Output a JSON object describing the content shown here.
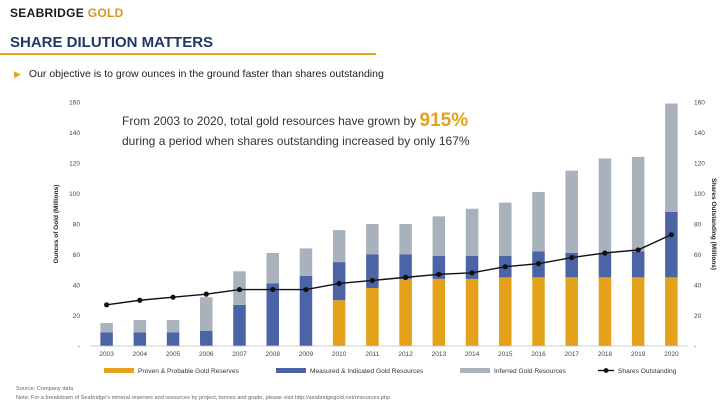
{
  "logo": {
    "part1": "SEABRIDGE",
    "part2": "GOLD"
  },
  "title": "SHARE DILUTION MATTERS",
  "bullet": "Our objective is to grow ounces in the ground faster than shares outstanding",
  "annotation": {
    "line1_prefix": "From 2003 to 2020, total gold resources have grown by",
    "line1_highlight": "915%",
    "line2": "during a period when shares outstanding increased by only 167%"
  },
  "footer": {
    "source": "Source: Company data",
    "note": "Note: For a breakdown of Seabridge's mineral reserves and resources by project, tonnes and grade, please visit http://seabridgegold.net/resources.php"
  },
  "colors": {
    "pp": "#e3a21a",
    "mi": "#4a64a6",
    "inf": "#a9b1bd",
    "line": "#111111",
    "accent": "#e3a21a",
    "title": "#1f3864"
  },
  "chart_data": {
    "type": "bar",
    "stacked": true,
    "categories": [
      "2003",
      "2004",
      "2005",
      "2006",
      "2007",
      "2008",
      "2009",
      "2010",
      "2011",
      "2012",
      "2013",
      "2014",
      "2015",
      "2016",
      "2017",
      "2018",
      "2019",
      "2020"
    ],
    "series": [
      {
        "name": "Proven & Probable Gold Reserves",
        "values": [
          0,
          0,
          0,
          0,
          0,
          0,
          0,
          30,
          38,
          44,
          44,
          44,
          45,
          45,
          45,
          45,
          45,
          45
        ]
      },
      {
        "name": "Measured & Indicated Gold Resources",
        "values": [
          9,
          9,
          9,
          10,
          27,
          41,
          46,
          25,
          22,
          16,
          15,
          15,
          14,
          17,
          16,
          16,
          17,
          43
        ]
      },
      {
        "name": "Inferred Gold Resources",
        "values": [
          6,
          8,
          8,
          22,
          22,
          20,
          18,
          21,
          20,
          20,
          26,
          31,
          35,
          39,
          54,
          62,
          62,
          71
        ]
      }
    ],
    "line_series": {
      "name": "Shares Outstanding",
      "values": [
        27,
        30,
        32,
        34,
        37,
        37,
        37,
        41,
        43,
        45,
        47,
        48,
        52,
        54,
        58,
        61,
        63,
        73
      ]
    },
    "ylabel": "Ounces of Gold (Millions)",
    "y2label": "Shares Outstanding (Millions)",
    "ylim": [
      0,
      160
    ],
    "y2lim": [
      0,
      160
    ],
    "yticks": [
      "-",
      "20",
      "40",
      "60",
      "80",
      "100",
      "120",
      "140",
      "160"
    ],
    "y2ticks": [
      "-",
      "20",
      "40",
      "60",
      "80",
      "100",
      "120",
      "140",
      "160"
    ],
    "grid": false,
    "legend_position": "bottom"
  }
}
